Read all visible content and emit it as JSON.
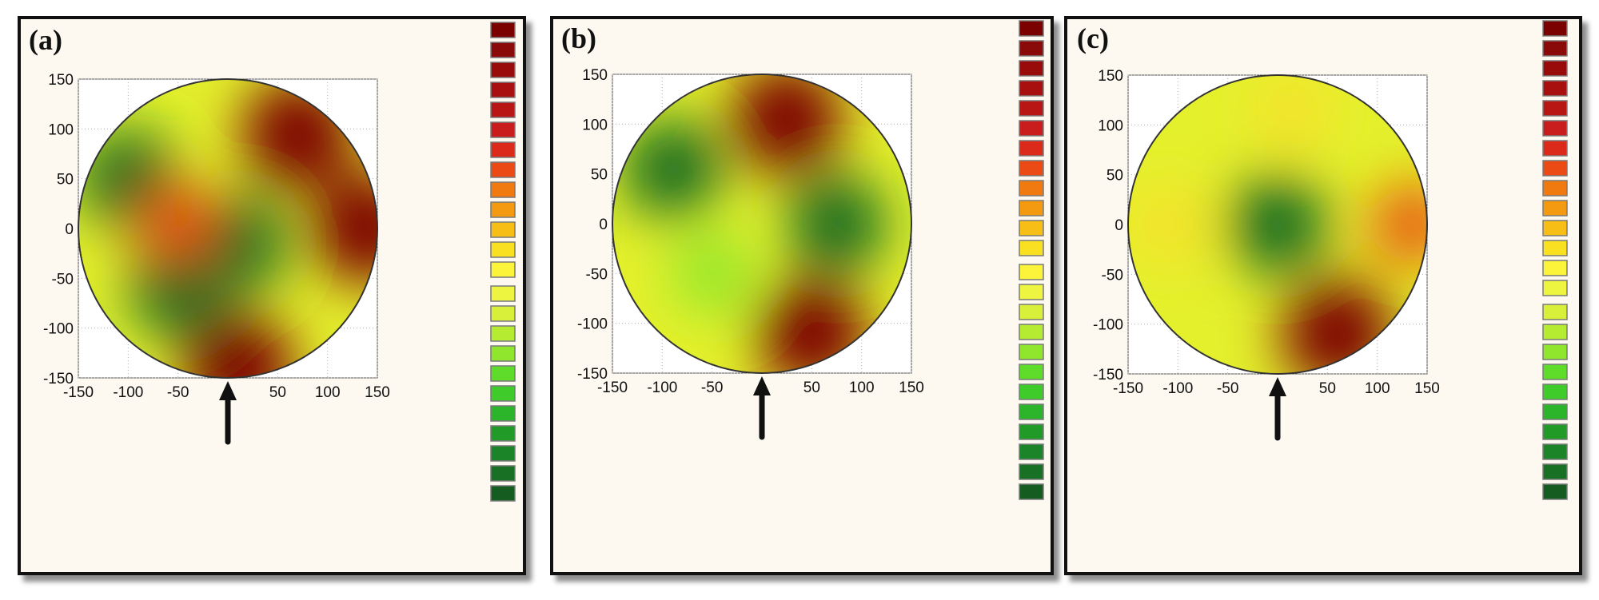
{
  "chart_data": [
    {
      "type": "heatmap",
      "label": "(a)",
      "xlim": [
        -150,
        150
      ],
      "ylim": [
        -150,
        150
      ],
      "xticks": [
        -150,
        -100,
        -50,
        0,
        50,
        100,
        150
      ],
      "yticks": [
        150,
        100,
        50,
        0,
        -50,
        -100,
        -150
      ],
      "grid": true,
      "shape": "circle",
      "legend": "color-scale swatches on the right",
      "hotspots": [
        {
          "x": 70,
          "y": 95,
          "level": "high"
        },
        {
          "x": 140,
          "y": 0,
          "level": "high"
        },
        {
          "x": 10,
          "y": -140,
          "level": "high"
        },
        {
          "x": -50,
          "y": -60,
          "level": "low"
        },
        {
          "x": 10,
          "y": -15,
          "level": "low"
        },
        {
          "x": -100,
          "y": 50,
          "level": "low"
        },
        {
          "x": -50,
          "y": 5,
          "level": "mid-high"
        }
      ],
      "arrow_x": 0
    },
    {
      "type": "heatmap",
      "label": "(b)",
      "xlim": [
        -150,
        150
      ],
      "ylim": [
        -150,
        150
      ],
      "xticks": [
        -150,
        -100,
        -50,
        0,
        50,
        100,
        150
      ],
      "yticks": [
        150,
        100,
        50,
        0,
        -50,
        -100,
        -150
      ],
      "grid": true,
      "shape": "circle",
      "legend": "color-scale swatches on the right",
      "hotspots": [
        {
          "x": 25,
          "y": 105,
          "level": "high"
        },
        {
          "x": 50,
          "y": -110,
          "level": "high"
        },
        {
          "x": -90,
          "y": 55,
          "level": "low"
        },
        {
          "x": 75,
          "y": 0,
          "level": "low"
        },
        {
          "x": -50,
          "y": -50,
          "level": "low-mid"
        }
      ],
      "arrow_x": 0
    },
    {
      "type": "heatmap",
      "label": "(c)",
      "xlim": [
        -150,
        150
      ],
      "ylim": [
        -150,
        150
      ],
      "xticks": [
        -150,
        -100,
        -50,
        0,
        50,
        100,
        150
      ],
      "yticks": [
        150,
        100,
        50,
        0,
        -50,
        -100,
        -150
      ],
      "grid": true,
      "shape": "circle",
      "legend": "color-scale swatches on the right",
      "hotspots": [
        {
          "x": 0,
          "y": 0,
          "level": "low"
        },
        {
          "x": 60,
          "y": -110,
          "level": "high"
        },
        {
          "x": 135,
          "y": 0,
          "level": "mid-high"
        },
        {
          "x": 15,
          "y": 115,
          "level": "mid"
        },
        {
          "x": -110,
          "y": 0,
          "level": "mid"
        }
      ],
      "arrow_x": 0
    }
  ],
  "legend_colors": [
    "#7b0000",
    "#8a0a0a",
    "#990a0a",
    "#a80f0f",
    "#b81515",
    "#c91c1c",
    "#dc2a1a",
    "#ec4a14",
    "#f07a10",
    "#f49a10",
    "#f7bf16",
    "#f9e020",
    "#fbf43a",
    "#eef540",
    "#d8f03a",
    "#b5ec32",
    "#8fe62c",
    "#5fdc2a",
    "#3fcc2a",
    "#2cb42a",
    "#229a28",
    "#1c8428",
    "#187024",
    "#145c20"
  ],
  "legend_marker": "...A",
  "colors": {
    "panel_bg": "#fdf9f0",
    "plot_bg": "#ffffff",
    "grid": "#b0b0b0"
  }
}
